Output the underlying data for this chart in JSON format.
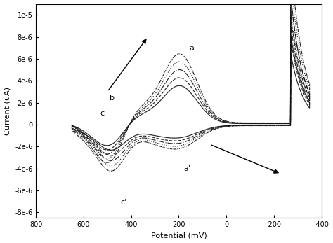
{
  "xlabel": "Potential (mV)",
  "ylabel": "Current (uA)",
  "xlim": [
    800,
    -400
  ],
  "ylim": [
    -8.5e-06,
    1.1e-05
  ],
  "yticks": [
    1e-05,
    8e-06,
    6e-06,
    4e-06,
    2e-06,
    0,
    -2e-06,
    -4e-06,
    -6e-06,
    -8e-06
  ],
  "ytick_labels": [
    "1e-5",
    "8e-6",
    "6e-6",
    "4e-6",
    "2e-6",
    "0",
    "-2e-6",
    "-4e-6",
    "-6e-6",
    "-8e-6"
  ],
  "xticks": [
    800,
    600,
    400,
    200,
    0,
    -200,
    -400
  ],
  "num_scans": 5,
  "background": "#ffffff",
  "line_color": "#111111"
}
